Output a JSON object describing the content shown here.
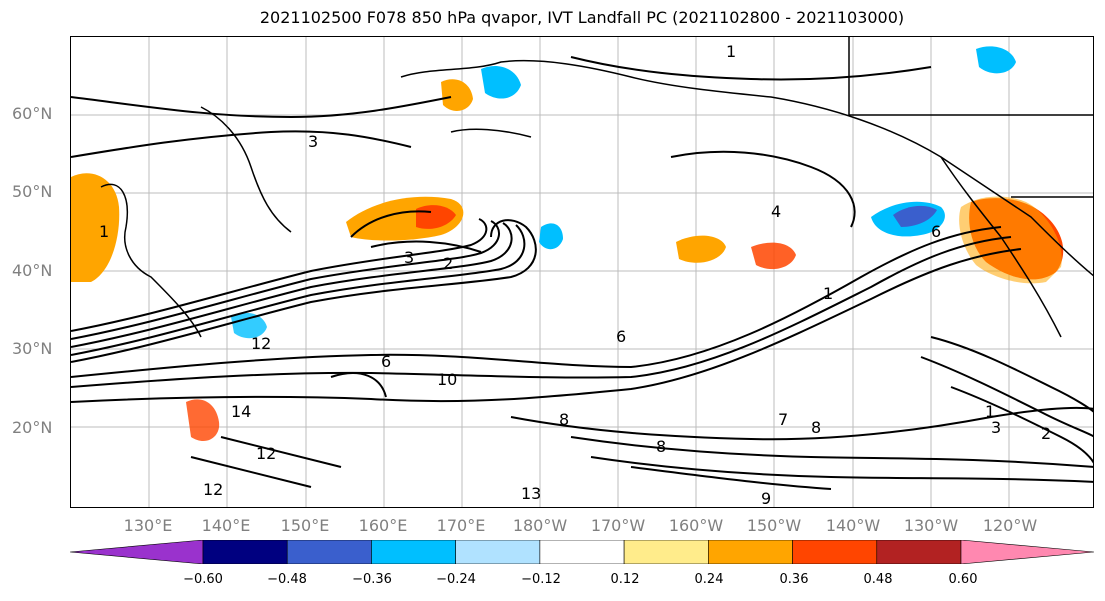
{
  "title": "2021102500 F078 850 hPa qvapor, IVT Landfall PC (2021102800 - 2021103000)",
  "lat_labels": [
    "60°N",
    "50°N",
    "40°N",
    "30°N",
    "20°N"
  ],
  "lon_labels": [
    "130°E",
    "140°E",
    "150°E",
    "160°E",
    "170°E",
    "180°W",
    "170°W",
    "160°W",
    "150°W",
    "140°W",
    "130°W",
    "120°W"
  ],
  "contour_labels": [
    "1",
    "3",
    "3",
    "2",
    "10",
    "12",
    "12",
    "14",
    "12",
    "13",
    "8",
    "8",
    "7",
    "8",
    "6",
    "6",
    "9",
    "1",
    "1",
    "2",
    "3",
    "6",
    "1",
    "4"
  ],
  "colorbar": {
    "ticks": [
      "−0.60",
      "−0.48",
      "−0.36",
      "−0.24",
      "−0.12",
      "0.12",
      "0.24",
      "0.36",
      "0.48",
      "0.60"
    ],
    "colors": [
      "#9a32cd",
      "#000080",
      "#3a5fcd",
      "#00bfff",
      "#b0e2ff",
      "#ffffff",
      "#ffec8b",
      "#ffa500",
      "#ff4500",
      "#b22222",
      "#ff88b0"
    ]
  },
  "colors": {
    "frame": "#000000",
    "grid": "#a0a0a0",
    "axis_label": "#808080",
    "contour": "#000000"
  }
}
